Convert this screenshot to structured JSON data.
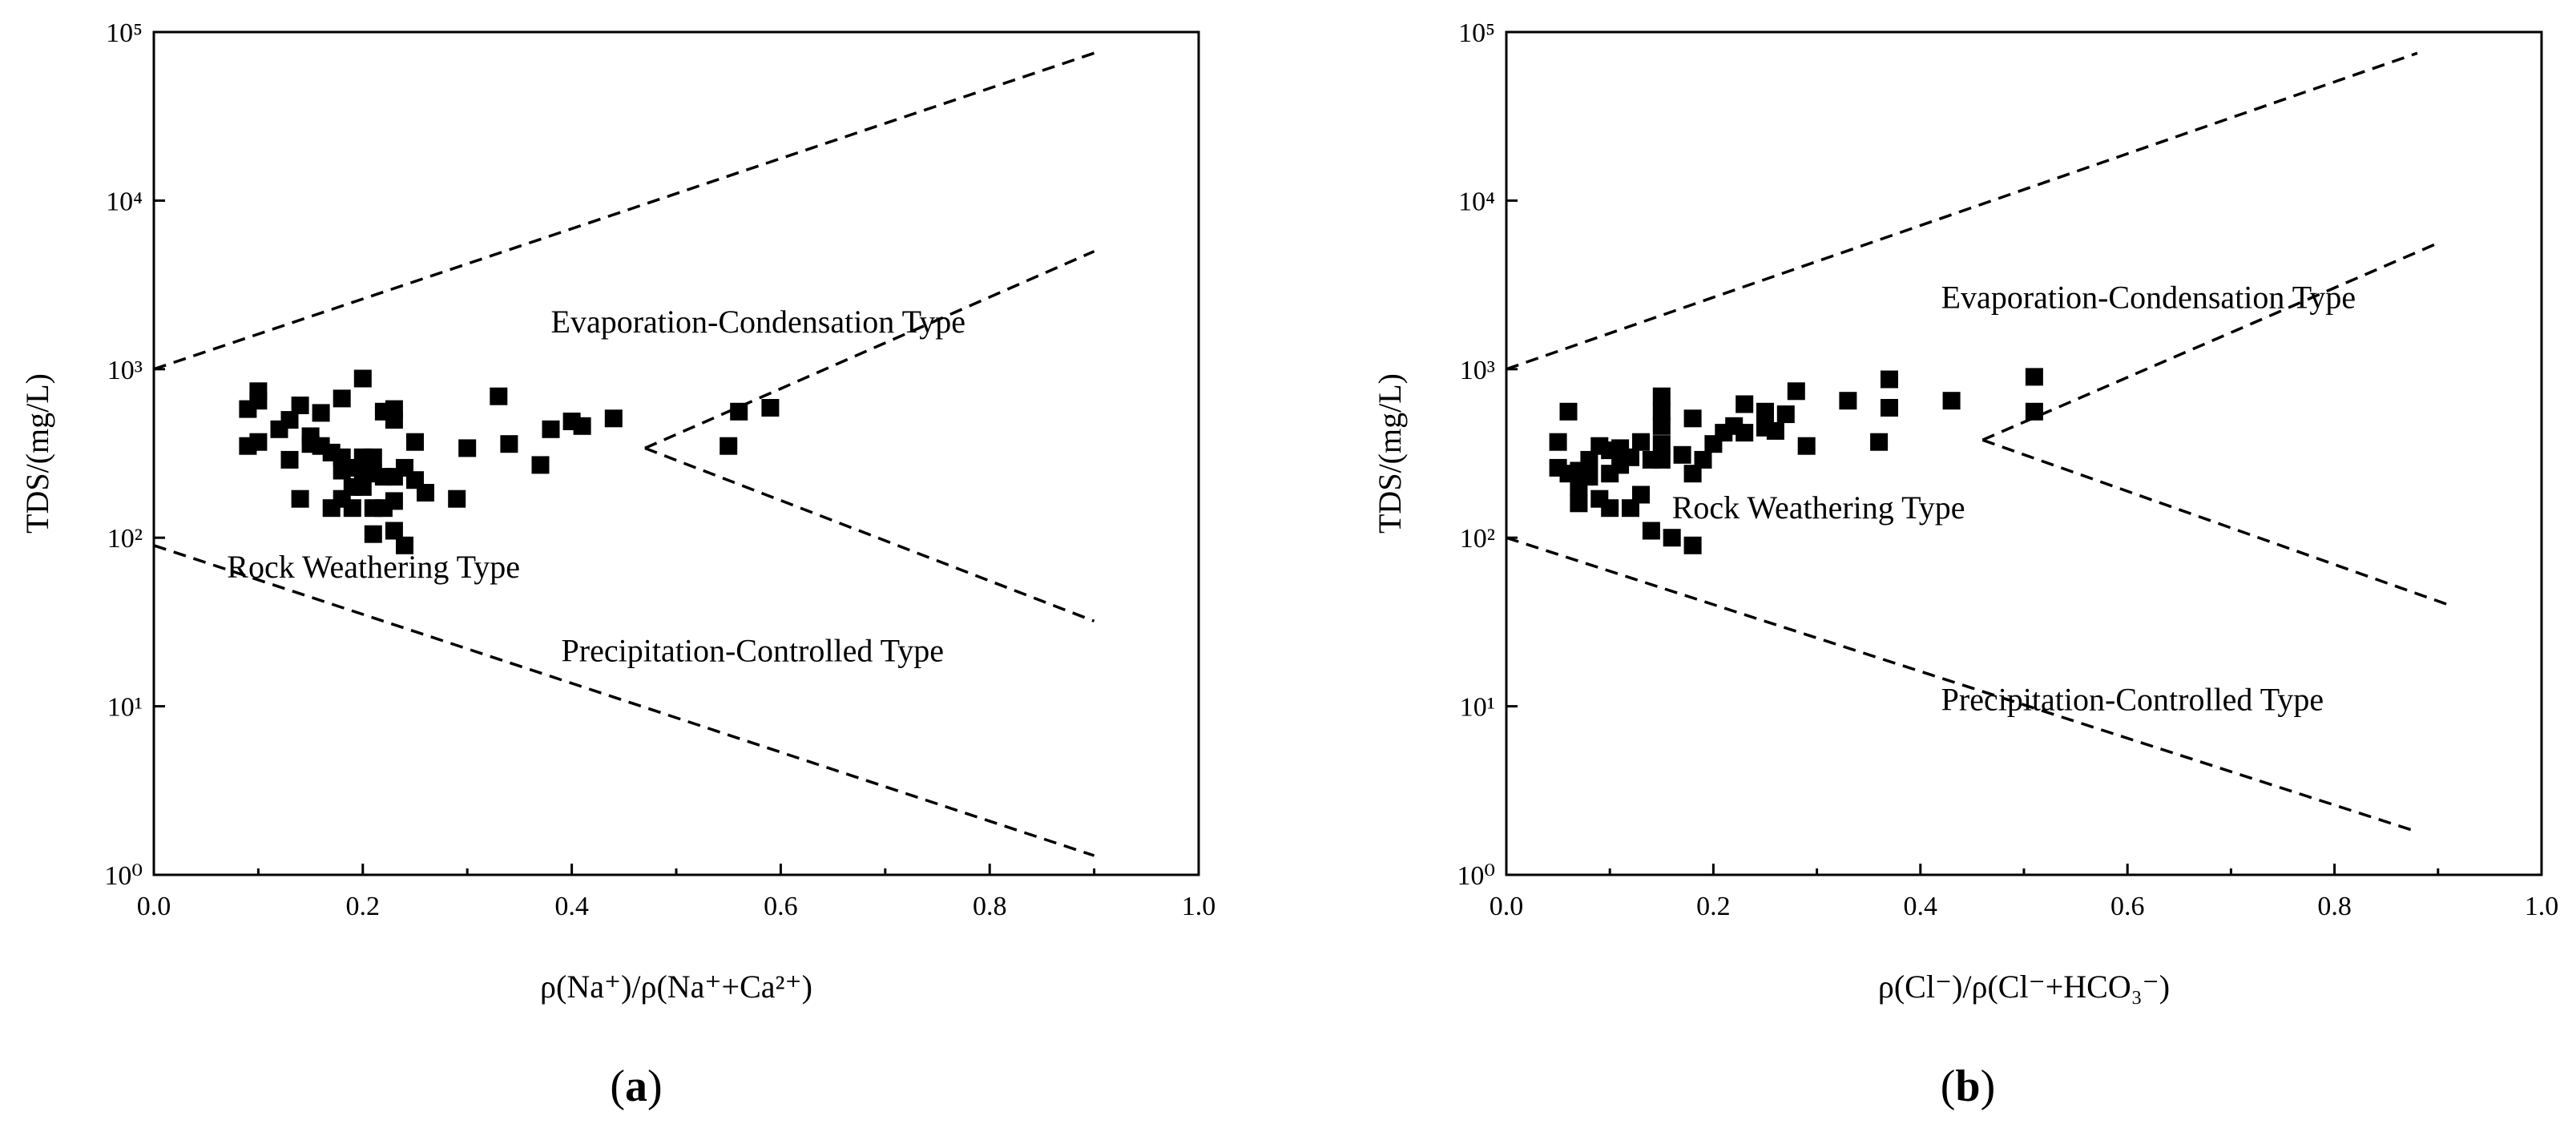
{
  "chart_data": [
    {
      "type": "scatter",
      "panel": "(a)",
      "panel_letter": "a",
      "xlabel": "ρ(Na⁺)/ρ(Na⁺+Ca²⁺)",
      "ylabel": "TDS/(mg/L)",
      "xlim": [
        0.0,
        1.0
      ],
      "ylim": [
        1,
        100000
      ],
      "yscale": "log",
      "x_ticks": [
        "0.0",
        "0.2",
        "0.4",
        "0.6",
        "0.8",
        "1.0"
      ],
      "y_ticks": [
        "10⁰",
        "10¹",
        "10²",
        "10³",
        "10⁴",
        "10⁵"
      ],
      "annotations": [
        {
          "text": "Evaporation-Condensation Type",
          "x": 0.38,
          "y": 1650
        },
        {
          "text": "Rock Weathering Type",
          "x": 0.07,
          "y": 58
        },
        {
          "text": "Precipitation-Controlled Type",
          "x": 0.39,
          "y": 18.5
        }
      ],
      "boundary_lines": [
        {
          "points": [
            [
              0.0,
              1000
            ],
            [
              0.9,
              75000
            ]
          ]
        },
        {
          "points": [
            [
              0.47,
              340
            ],
            [
              0.9,
              5000
            ]
          ]
        },
        {
          "points": [
            [
              0.47,
              340
            ],
            [
              0.9,
              32
            ]
          ]
        },
        {
          "points": [
            [
              0.0,
              90
            ],
            [
              0.9,
              1.3
            ]
          ]
        }
      ],
      "series": [
        {
          "name": "samples",
          "points": [
            [
              0.09,
              580
            ],
            [
              0.09,
              350
            ],
            [
              0.1,
              740
            ],
            [
              0.1,
              650
            ],
            [
              0.1,
              370
            ],
            [
              0.12,
              440
            ],
            [
              0.13,
              500
            ],
            [
              0.13,
              290
            ],
            [
              0.14,
              610
            ],
            [
              0.14,
              170
            ],
            [
              0.15,
              400
            ],
            [
              0.15,
              360
            ],
            [
              0.16,
              550
            ],
            [
              0.16,
              350
            ],
            [
              0.17,
              150
            ],
            [
              0.17,
              320
            ],
            [
              0.18,
              670
            ],
            [
              0.18,
              300
            ],
            [
              0.18,
              250
            ],
            [
              0.18,
              170
            ],
            [
              0.19,
              260
            ],
            [
              0.19,
              200
            ],
            [
              0.19,
              150
            ],
            [
              0.2,
              880
            ],
            [
              0.2,
              300
            ],
            [
              0.2,
              250
            ],
            [
              0.2,
              200
            ],
            [
              0.21,
              300
            ],
            [
              0.21,
              240
            ],
            [
              0.21,
              150
            ],
            [
              0.21,
              105
            ],
            [
              0.22,
              560
            ],
            [
              0.22,
              230
            ],
            [
              0.22,
              150
            ],
            [
              0.23,
              580
            ],
            [
              0.23,
              500
            ],
            [
              0.23,
              230
            ],
            [
              0.23,
              165
            ],
            [
              0.23,
              110
            ],
            [
              0.24,
              90
            ],
            [
              0.24,
              260
            ],
            [
              0.25,
              370
            ],
            [
              0.25,
              220
            ],
            [
              0.26,
              185
            ],
            [
              0.29,
              170
            ],
            [
              0.3,
              340
            ],
            [
              0.33,
              690
            ],
            [
              0.34,
              360
            ],
            [
              0.37,
              270
            ],
            [
              0.38,
              440
            ],
            [
              0.4,
              490
            ],
            [
              0.41,
              460
            ],
            [
              0.44,
              510
            ],
            [
              0.55,
              350
            ],
            [
              0.56,
              560
            ],
            [
              0.59,
              590
            ]
          ]
        }
      ]
    },
    {
      "type": "scatter",
      "panel": "(b)",
      "panel_letter": "b",
      "xlabel": "ρ(Cl⁻)/ρ(Cl⁻+HCO₃⁻)",
      "ylabel": "TDS/(mg/L)",
      "xlim": [
        0.0,
        1.0
      ],
      "ylim": [
        1,
        100000
      ],
      "yscale": "log",
      "x_ticks": [
        "0.0",
        "0.2",
        "0.4",
        "0.6",
        "0.8",
        "1.0"
      ],
      "y_ticks": [
        "10⁰",
        "10¹",
        "10²",
        "10³",
        "10⁴",
        "10⁵"
      ],
      "annotations": [
        {
          "text": "Evaporation-Condensation Type",
          "x": 0.42,
          "y": 2300
        },
        {
          "text": "Rock Weathering Type",
          "x": 0.16,
          "y": 130
        },
        {
          "text": "Precipitation-Controlled Type",
          "x": 0.42,
          "y": 9.5
        }
      ],
      "boundary_lines": [
        {
          "points": [
            [
              0.0,
              1000
            ],
            [
              0.88,
              75000
            ]
          ]
        },
        {
          "points": [
            [
              0.46,
              380
            ],
            [
              0.9,
              5600
            ]
          ]
        },
        {
          "points": [
            [
              0.46,
              380
            ],
            [
              0.91,
              40
            ]
          ]
        },
        {
          "points": [
            [
              0.0,
              100
            ],
            [
              0.88,
              1.8
            ]
          ]
        }
      ],
      "series": [
        {
          "name": "samples",
          "points": [
            [
              0.05,
              370
            ],
            [
              0.05,
              260
            ],
            [
              0.06,
              560
            ],
            [
              0.06,
              240
            ],
            [
              0.07,
              200
            ],
            [
              0.07,
              160
            ],
            [
              0.07,
              250
            ],
            [
              0.08,
              290
            ],
            [
              0.08,
              230
            ],
            [
              0.09,
              350
            ],
            [
              0.09,
              170
            ],
            [
              0.1,
              240
            ],
            [
              0.1,
              330
            ],
            [
              0.1,
              150
            ],
            [
              0.11,
              340
            ],
            [
              0.11,
              270
            ],
            [
              0.12,
              300
            ],
            [
              0.12,
              150
            ],
            [
              0.13,
              370
            ],
            [
              0.13,
              180
            ],
            [
              0.14,
              290
            ],
            [
              0.14,
              110
            ],
            [
              0.15,
              690
            ],
            [
              0.15,
              560
            ],
            [
              0.15,
              460
            ],
            [
              0.15,
              360
            ],
            [
              0.15,
              290
            ],
            [
              0.16,
              100
            ],
            [
              0.17,
              310
            ],
            [
              0.18,
              510
            ],
            [
              0.18,
              240
            ],
            [
              0.18,
              90
            ],
            [
              0.19,
              290
            ],
            [
              0.2,
              360
            ],
            [
              0.21,
              420
            ],
            [
              0.22,
              460
            ],
            [
              0.23,
              620
            ],
            [
              0.23,
              420
            ],
            [
              0.25,
              560
            ],
            [
              0.25,
              450
            ],
            [
              0.26,
              430
            ],
            [
              0.27,
              540
            ],
            [
              0.28,
              740
            ],
            [
              0.29,
              350
            ],
            [
              0.33,
              650
            ],
            [
              0.36,
              370
            ],
            [
              0.37,
              870
            ],
            [
              0.37,
              590
            ],
            [
              0.43,
              650
            ],
            [
              0.51,
              900
            ],
            [
              0.51,
              560
            ]
          ]
        }
      ]
    }
  ]
}
